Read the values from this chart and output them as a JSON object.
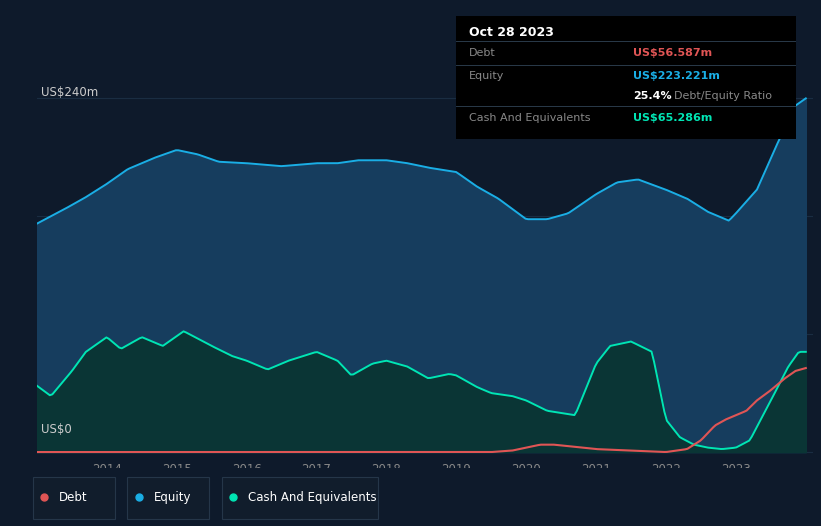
{
  "bg_color": "#0e1a2b",
  "plot_bg_color": "#0e1a2b",
  "tooltip": {
    "date": "Oct 28 2023",
    "debt_label": "Debt",
    "debt_value": "US$56.587m",
    "equity_label": "Equity",
    "equity_value": "US$223.221m",
    "ratio_bold": "25.4%",
    "ratio_rest": " Debt/Equity Ratio",
    "cash_label": "Cash And Equivalents",
    "cash_value": "US$65.286m"
  },
  "y_label_top": "US$240m",
  "y_label_bottom": "US$0",
  "x_ticks": [
    2014,
    2015,
    2016,
    2017,
    2018,
    2019,
    2020,
    2021,
    2022,
    2023
  ],
  "equity_color": "#1aaee5",
  "equity_fill": "#163d5e",
  "cash_color": "#00e5b4",
  "cash_fill": "#0a3535",
  "debt_color": "#e05555",
  "grid_color": "#1a2d42",
  "tick_color": "#888888",
  "legend_bg": "#111d2c",
  "legend_border": "#253649"
}
